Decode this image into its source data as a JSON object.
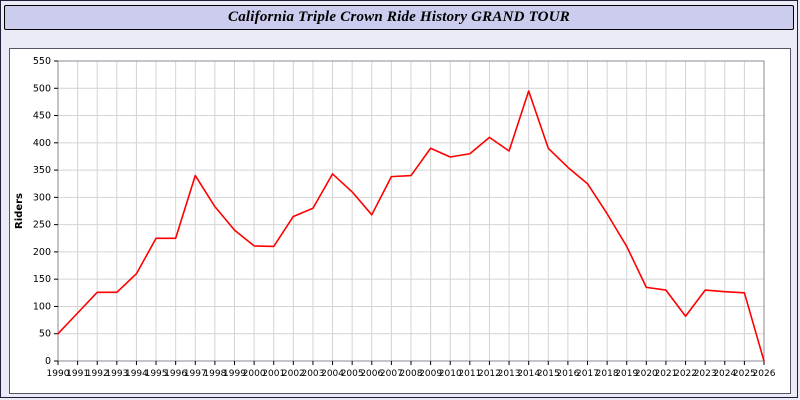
{
  "title": "California Triple Crown Ride History GRAND TOUR",
  "chart_data": {
    "type": "line",
    "title": "California Triple Crown Ride History GRAND TOUR",
    "xlabel": "",
    "ylabel": "Riders",
    "ylim": [
      0,
      550
    ],
    "ytick_step": 50,
    "grid": true,
    "legend": "none",
    "x": [
      1990,
      1991,
      1992,
      1993,
      1994,
      1995,
      1996,
      1997,
      1998,
      1999,
      2000,
      2001,
      2002,
      2003,
      2004,
      2005,
      2006,
      2007,
      2008,
      2009,
      2010,
      2011,
      2012,
      2013,
      2014,
      2015,
      2016,
      2017,
      2018,
      2019,
      2020,
      2021,
      2022,
      2023,
      2024,
      2025,
      2026
    ],
    "series": [
      {
        "name": "Riders",
        "color": "#ff0000",
        "values": [
          50,
          88,
          126,
          126,
          160,
          225,
          225,
          340,
          283,
          240,
          211,
          210,
          265,
          280,
          343,
          310,
          268,
          338,
          340,
          390,
          374,
          380,
          410,
          385,
          495,
          390,
          355,
          325,
          270,
          210,
          135,
          130,
          82,
          130,
          127,
          125,
          0
        ]
      }
    ],
    "colors": {
      "page_background": "#ebebf7",
      "title_bar_background": "#ccccee",
      "plot_background": "#ffffff",
      "gridline": "#d4d4d4",
      "line": "#ff0000",
      "text": "#000000"
    }
  }
}
